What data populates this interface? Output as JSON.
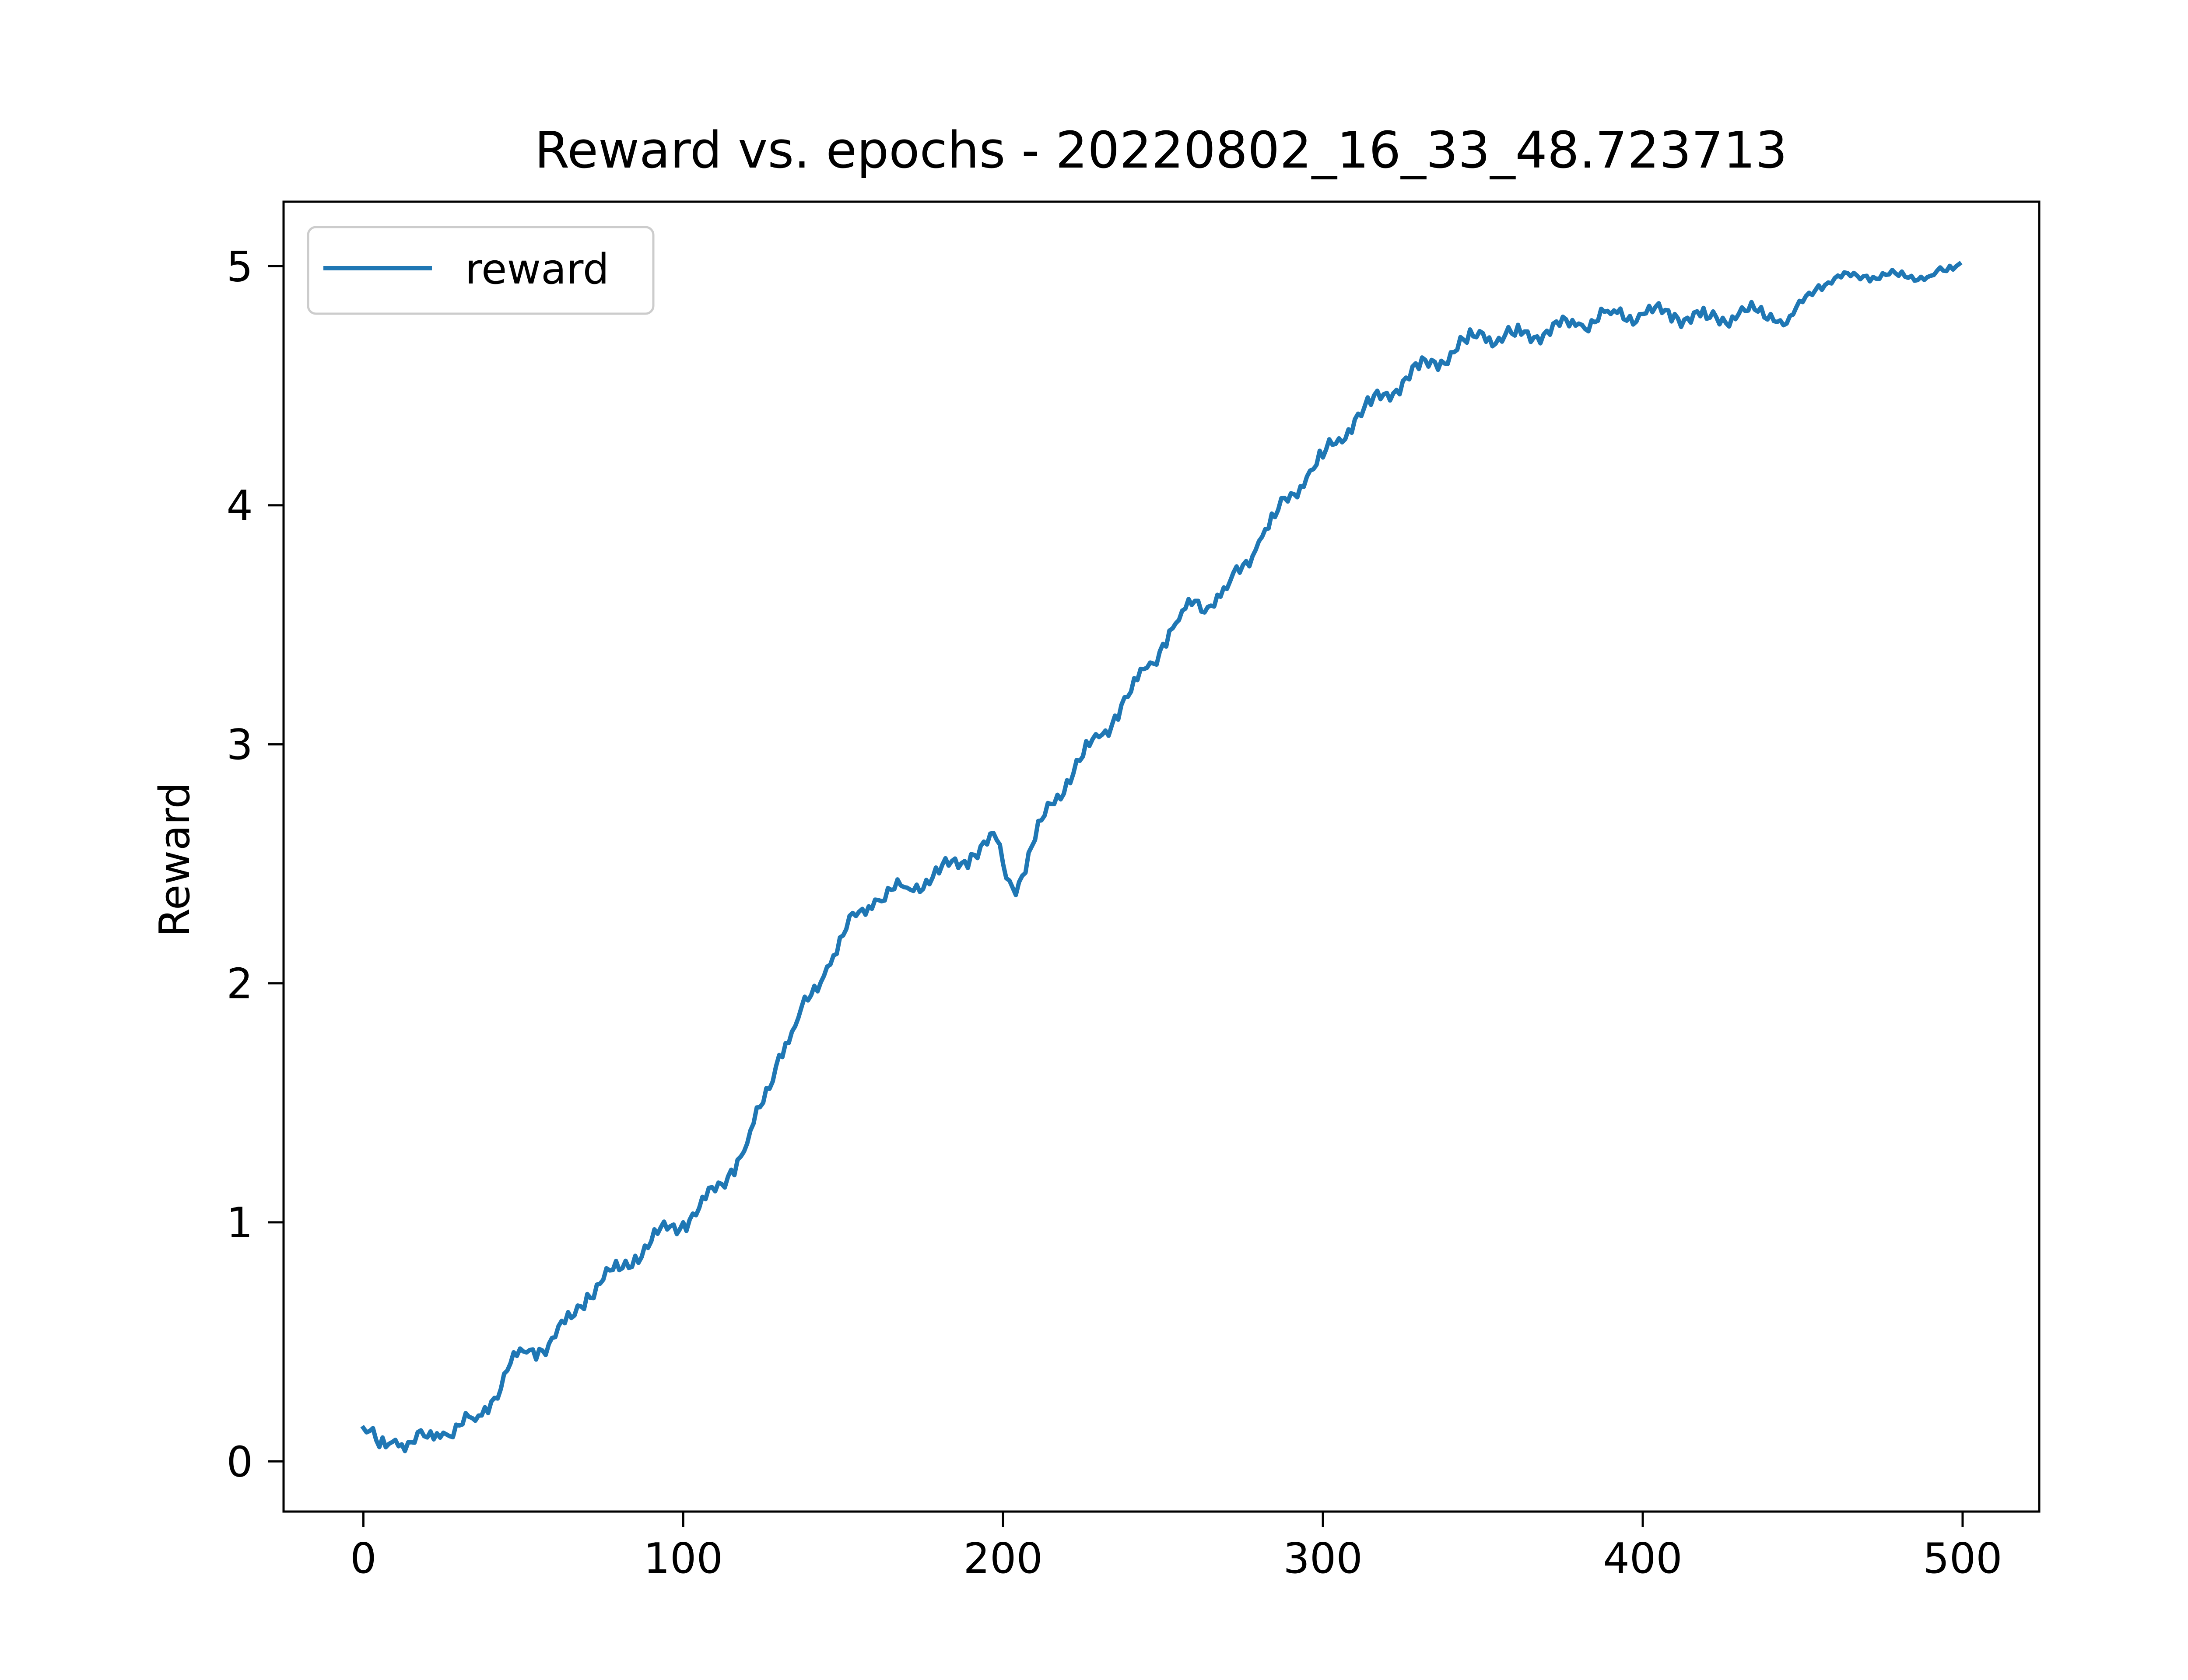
{
  "chart_data": {
    "type": "line",
    "title": "Reward vs. epochs - 20220802_16_33_48.723713",
    "xlabel": "",
    "ylabel": "Reward",
    "xlim": [
      -24.95,
      523.95
    ],
    "ylim": [
      -0.21,
      5.27
    ],
    "x_ticks": [
      0,
      100,
      200,
      300,
      400,
      500
    ],
    "y_ticks": [
      0,
      1,
      2,
      3,
      4,
      5
    ],
    "grid": false,
    "legend_position": "top-left",
    "series": [
      {
        "name": "reward",
        "color": "#1f77b4",
        "keypoints": [
          [
            0,
            0.14
          ],
          [
            5,
            0.06
          ],
          [
            10,
            0.09
          ],
          [
            15,
            0.08
          ],
          [
            20,
            0.1
          ],
          [
            25,
            0.12
          ],
          [
            30,
            0.15
          ],
          [
            35,
            0.17
          ],
          [
            40,
            0.25
          ],
          [
            45,
            0.38
          ],
          [
            50,
            0.46
          ],
          [
            55,
            0.47
          ],
          [
            60,
            0.52
          ],
          [
            65,
            0.6
          ],
          [
            70,
            0.7
          ],
          [
            75,
            0.76
          ],
          [
            80,
            0.8
          ],
          [
            85,
            0.86
          ],
          [
            90,
            0.92
          ],
          [
            95,
            0.97
          ],
          [
            100,
            1.0
          ],
          [
            105,
            1.06
          ],
          [
            110,
            1.13
          ],
          [
            115,
            1.22
          ],
          [
            120,
            1.33
          ],
          [
            125,
            1.5
          ],
          [
            130,
            1.7
          ],
          [
            135,
            1.82
          ],
          [
            140,
            1.95
          ],
          [
            145,
            2.07
          ],
          [
            150,
            2.2
          ],
          [
            155,
            2.3
          ],
          [
            160,
            2.35
          ],
          [
            170,
            2.4
          ],
          [
            180,
            2.46
          ],
          [
            190,
            2.54
          ],
          [
            198,
            2.6
          ],
          [
            200,
            2.5
          ],
          [
            203,
            2.4
          ],
          [
            206,
            2.45
          ],
          [
            210,
            2.6
          ],
          [
            215,
            2.75
          ],
          [
            220,
            2.85
          ],
          [
            225,
            2.95
          ],
          [
            230,
            3.03
          ],
          [
            235,
            3.12
          ],
          [
            240,
            3.22
          ],
          [
            245,
            3.32
          ],
          [
            250,
            3.42
          ],
          [
            255,
            3.52
          ],
          [
            260,
            3.6
          ],
          [
            265,
            3.58
          ],
          [
            270,
            3.65
          ],
          [
            275,
            3.75
          ],
          [
            280,
            3.85
          ],
          [
            285,
            3.95
          ],
          [
            290,
            4.05
          ],
          [
            295,
            4.12
          ],
          [
            300,
            4.2
          ],
          [
            305,
            4.28
          ],
          [
            310,
            4.36
          ],
          [
            315,
            4.42
          ],
          [
            320,
            4.47
          ],
          [
            325,
            4.52
          ],
          [
            330,
            4.57
          ],
          [
            335,
            4.6
          ],
          [
            340,
            4.64
          ],
          [
            345,
            4.68
          ],
          [
            350,
            4.72
          ],
          [
            355,
            4.7
          ],
          [
            360,
            4.71
          ],
          [
            370,
            4.73
          ],
          [
            380,
            4.76
          ],
          [
            390,
            4.8
          ],
          [
            400,
            4.8
          ],
          [
            410,
            4.8
          ],
          [
            420,
            4.78
          ],
          [
            430,
            4.8
          ],
          [
            440,
            4.8
          ],
          [
            445,
            4.76
          ],
          [
            450,
            4.85
          ],
          [
            455,
            4.92
          ],
          [
            460,
            4.95
          ],
          [
            470,
            4.96
          ],
          [
            480,
            4.96
          ],
          [
            490,
            4.96
          ],
          [
            495,
            4.98
          ],
          [
            499,
            5.01
          ]
        ]
      }
    ]
  }
}
